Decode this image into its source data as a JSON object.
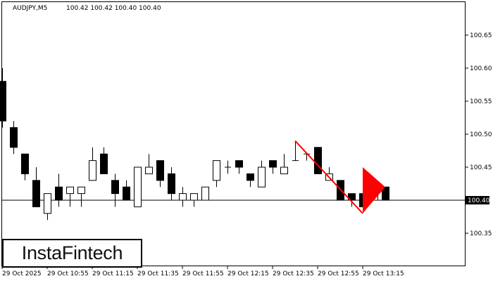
{
  "header": {
    "symbol": "AUDJPY,M5",
    "ohlc": "100.42 100.42 100.40 100.40"
  },
  "logo_text": "InstaFintech",
  "colors": {
    "bull_fill": "#ffffff",
    "bear_fill": "#000000",
    "pattern": "#ff0000",
    "current_price_box": "#000000"
  },
  "chart_data": {
    "type": "candlestick",
    "timeframe": "M5",
    "ylim": [
      100.33,
      100.69
    ],
    "yticks": [
      "100.65",
      "100.60",
      "100.55",
      "100.50",
      "100.45",
      "100.40",
      "100.35"
    ],
    "xtick_labels": [
      "29 Oct 2025",
      "29 Oct 10:55",
      "29 Oct 11:15",
      "29 Oct 11:35",
      "29 Oct 11:55",
      "29 Oct 12:15",
      "29 Oct 12:35",
      "29 Oct 12:55",
      "29 Oct 13:15"
    ],
    "xtick_candle_index": [
      0,
      4,
      8,
      12,
      16,
      20,
      24,
      28,
      32
    ],
    "current_price": "100.40",
    "candles": [
      {
        "o": 100.58,
        "h": 100.6,
        "l": 100.51,
        "c": 100.52
      },
      {
        "o": 100.51,
        "h": 100.52,
        "l": 100.47,
        "c": 100.48
      },
      {
        "o": 100.47,
        "h": 100.47,
        "l": 100.43,
        "c": 100.44
      },
      {
        "o": 100.43,
        "h": 100.45,
        "l": 100.39,
        "c": 100.39
      },
      {
        "o": 100.38,
        "h": 100.41,
        "l": 100.37,
        "c": 100.41
      },
      {
        "o": 100.42,
        "h": 100.44,
        "l": 100.39,
        "c": 100.4
      },
      {
        "o": 100.41,
        "h": 100.42,
        "l": 100.39,
        "c": 100.42
      },
      {
        "o": 100.41,
        "h": 100.42,
        "l": 100.39,
        "c": 100.42
      },
      {
        "o": 100.43,
        "h": 100.48,
        "l": 100.43,
        "c": 100.46
      },
      {
        "o": 100.47,
        "h": 100.48,
        "l": 100.44,
        "c": 100.44
      },
      {
        "o": 100.43,
        "h": 100.44,
        "l": 100.39,
        "c": 100.41
      },
      {
        "o": 100.42,
        "h": 100.43,
        "l": 100.4,
        "c": 100.4
      },
      {
        "o": 100.39,
        "h": 100.45,
        "l": 100.39,
        "c": 100.45
      },
      {
        "o": 100.44,
        "h": 100.47,
        "l": 100.44,
        "c": 100.45
      },
      {
        "o": 100.46,
        "h": 100.46,
        "l": 100.42,
        "c": 100.43
      },
      {
        "o": 100.44,
        "h": 100.45,
        "l": 100.4,
        "c": 100.41
      },
      {
        "o": 100.4,
        "h": 100.42,
        "l": 100.39,
        "c": 100.41
      },
      {
        "o": 100.4,
        "h": 100.41,
        "l": 100.39,
        "c": 100.41
      },
      {
        "o": 100.4,
        "h": 100.42,
        "l": 100.4,
        "c": 100.42
      },
      {
        "o": 100.43,
        "h": 100.46,
        "l": 100.42,
        "c": 100.46
      },
      {
        "o": 100.45,
        "h": 100.46,
        "l": 100.44,
        "c": 100.45
      },
      {
        "o": 100.46,
        "h": 100.46,
        "l": 100.44,
        "c": 100.45
      },
      {
        "o": 100.44,
        "h": 100.44,
        "l": 100.42,
        "c": 100.43
      },
      {
        "o": 100.42,
        "h": 100.46,
        "l": 100.42,
        "c": 100.45
      },
      {
        "o": 100.46,
        "h": 100.46,
        "l": 100.44,
        "c": 100.45
      },
      {
        "o": 100.44,
        "h": 100.47,
        "l": 100.44,
        "c": 100.45
      },
      {
        "o": 100.46,
        "h": 100.49,
        "l": 100.46,
        "c": 100.46
      },
      {
        "o": 100.47,
        "h": 100.47,
        "l": 100.46,
        "c": 100.47
      },
      {
        "o": 100.48,
        "h": 100.48,
        "l": 100.44,
        "c": 100.44
      },
      {
        "o": 100.43,
        "h": 100.45,
        "l": 100.43,
        "c": 100.44
      },
      {
        "o": 100.43,
        "h": 100.43,
        "l": 100.4,
        "c": 100.4
      },
      {
        "o": 100.41,
        "h": 100.41,
        "l": 100.39,
        "c": 100.4
      },
      {
        "o": 100.41,
        "h": 100.41,
        "l": 100.39,
        "c": 100.39
      },
      {
        "o": 100.4,
        "h": 100.43,
        "l": 100.4,
        "c": 100.41
      },
      {
        "o": 100.42,
        "h": 100.42,
        "l": 100.4,
        "c": 100.4
      }
    ],
    "pattern": {
      "pole": {
        "from": {
          "candle": 26,
          "price": 100.49
        },
        "to": {
          "candle": 32,
          "price": 100.38
        }
      },
      "flag": [
        {
          "candle": 32,
          "price": 100.45
        },
        {
          "candle": 34,
          "price": 100.42
        },
        {
          "candle": 32,
          "price": 100.38
        }
      ]
    }
  }
}
